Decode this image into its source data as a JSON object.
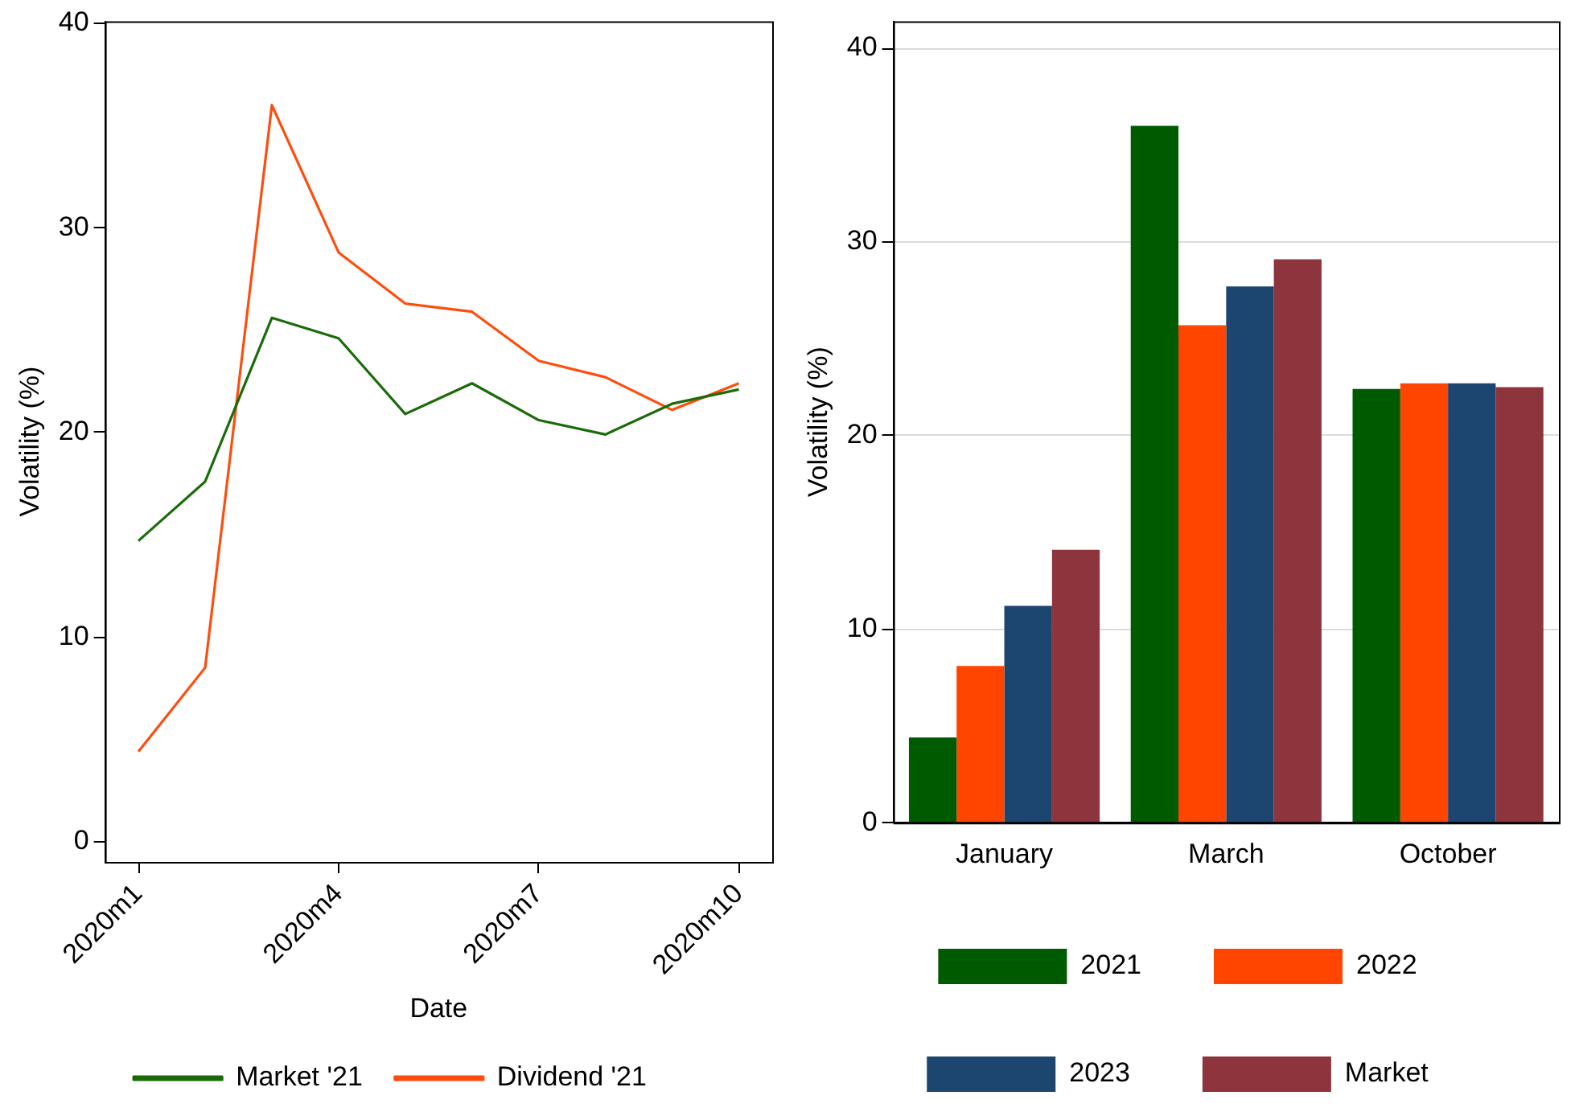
{
  "chart_data": [
    {
      "type": "line",
      "xlabel": "Date",
      "ylabel": "Volatility (%)",
      "categories": [
        "2020m1",
        null,
        null,
        "2020m4",
        null,
        null,
        "2020m7",
        null,
        null,
        "2020m10"
      ],
      "series": [
        {
          "name": "Market '21",
          "color": "#1a6b0a",
          "values": [
            14.7,
            17.6,
            25.6,
            24.6,
            20.9,
            22.4,
            20.6,
            19.9,
            21.4,
            22.1
          ]
        },
        {
          "name": "Dividend '21",
          "color": "#ff4d0d",
          "values": [
            4.4,
            8.5,
            36.0,
            28.8,
            26.3,
            25.9,
            23.5,
            22.7,
            21.1,
            22.4
          ]
        }
      ],
      "ylim": [
        -1,
        40.1
      ],
      "yticks": [
        0,
        10,
        20,
        30,
        40
      ],
      "grid": false,
      "legend": "bottom",
      "marker": "none",
      "line_style": "solid"
    },
    {
      "type": "bar",
      "ylabel": "Volatility (%)",
      "categories": [
        "January",
        "March",
        "October"
      ],
      "series": [
        {
          "name": "2021",
          "color": "#005a00",
          "values": [
            4.4,
            36.0,
            22.4
          ]
        },
        {
          "name": "2022",
          "color": "#ff4500",
          "values": [
            8.1,
            25.7,
            22.7
          ]
        },
        {
          "name": "2023",
          "color": "#1c4670",
          "values": [
            11.2,
            27.7,
            22.7
          ]
        },
        {
          "name": "Market",
          "color": "#8e343d",
          "values": [
            14.1,
            29.1,
            22.5
          ]
        }
      ],
      "ylim": [
        0,
        41.4
      ],
      "yticks": [
        0,
        10,
        20,
        30,
        40
      ],
      "grid": "y",
      "legend": "bottom"
    }
  ]
}
